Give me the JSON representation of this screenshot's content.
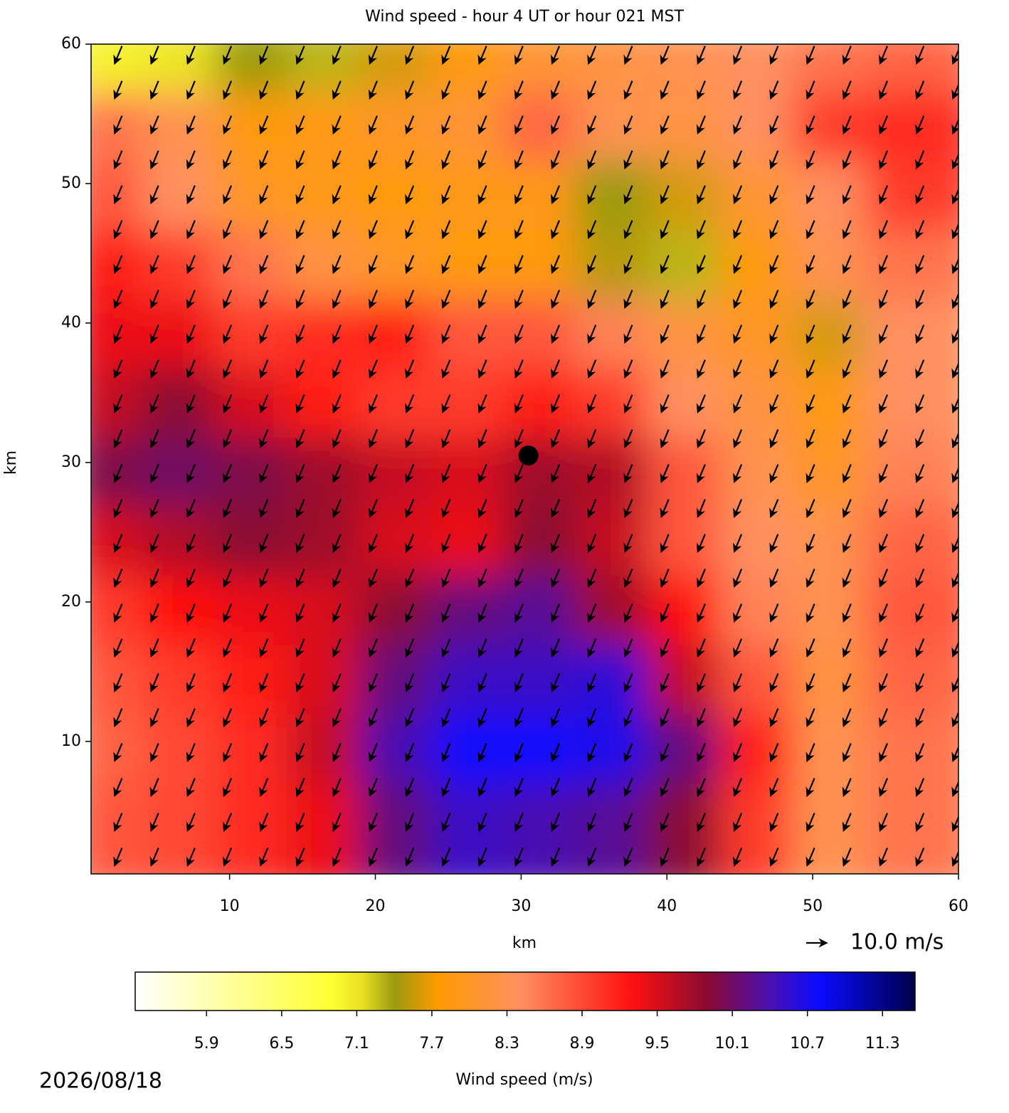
{
  "chart_data": {
    "type": "heatmap",
    "title": "Wind speed - hour 4 UT or hour 021 MST",
    "x_label": "km",
    "y_label": "km",
    "xlim": [
      0.5,
      60
    ],
    "ylim": [
      0.5,
      60
    ],
    "xticks": [
      10,
      20,
      30,
      40,
      50,
      60
    ],
    "yticks": [
      10,
      20,
      30,
      40,
      50,
      60
    ],
    "speed": [
      [
        7.0,
        7.1,
        7.4,
        7.3,
        7.6,
        7.8,
        8.1,
        8.2,
        8.3,
        8.4,
        8.6,
        8.7
      ],
      [
        8.6,
        8.3,
        7.8,
        7.9,
        8.0,
        8.1,
        8.7,
        8.3,
        8.2,
        8.4,
        9.0,
        9.1
      ],
      [
        8.8,
        8.4,
        8.0,
        7.9,
        7.8,
        7.9,
        7.9,
        7.4,
        7.6,
        8.1,
        8.4,
        9.0
      ],
      [
        9.2,
        9.0,
        8.6,
        8.2,
        8.0,
        7.8,
        7.8,
        7.5,
        7.3,
        7.8,
        8.3,
        8.6
      ],
      [
        9.4,
        9.4,
        9.0,
        9.1,
        9.2,
        8.8,
        8.8,
        8.5,
        8.2,
        8.0,
        7.6,
        8.4
      ],
      [
        9.6,
        9.9,
        9.5,
        9.2,
        9.0,
        9.0,
        9.2,
        9.0,
        8.4,
        8.2,
        7.8,
        8.4
      ],
      [
        10.0,
        10.1,
        10.0,
        9.8,
        9.6,
        9.5,
        9.8,
        9.7,
        8.8,
        8.3,
        8.0,
        8.5
      ],
      [
        9.5,
        9.7,
        9.9,
        9.8,
        9.5,
        9.4,
        9.9,
        9.6,
        8.8,
        8.4,
        8.3,
        8.7
      ],
      [
        9.0,
        9.3,
        9.4,
        9.5,
        9.9,
        10.2,
        10.3,
        9.8,
        9.3,
        8.5,
        8.3,
        8.8
      ],
      [
        8.8,
        9.0,
        9.2,
        9.5,
        10.2,
        10.5,
        10.5,
        10.6,
        9.6,
        8.8,
        8.2,
        8.7
      ],
      [
        8.7,
        8.9,
        9.1,
        9.6,
        10.4,
        10.8,
        10.8,
        10.7,
        10.2,
        9.2,
        8.3,
        8.6
      ],
      [
        8.8,
        8.9,
        9.1,
        9.4,
        10.2,
        10.5,
        10.4,
        10.3,
        9.9,
        9.0,
        8.3,
        8.6
      ]
    ],
    "quiver": {
      "u": -2.5,
      "v": -6,
      "spacing": 2.5,
      "key_value": 10,
      "key_label": "10.0 m/s"
    },
    "marker": {
      "x": 30.5,
      "y": 30.5,
      "color": "#000000"
    },
    "colorbar": {
      "label": "Wind speed (m/s)",
      "clim": [
        5.33,
        11.56
      ],
      "ticks": [
        5.9,
        6.5,
        7.1,
        7.7,
        8.3,
        8.9,
        9.5,
        10.1,
        10.7,
        11.3
      ],
      "colormap": [
        {
          "value": 5.33,
          "color": "#ffffff"
        },
        {
          "value": 6.9,
          "color": "#ffff33"
        },
        {
          "value": 7.15,
          "color": "#e8e020"
        },
        {
          "value": 7.4,
          "color": "#9a9a10"
        },
        {
          "value": 7.75,
          "color": "#ff9a00"
        },
        {
          "value": 8.4,
          "color": "#ff9060"
        },
        {
          "value": 9.3,
          "color": "#ff1010"
        },
        {
          "value": 9.9,
          "color": "#8a0a30"
        },
        {
          "value": 10.4,
          "color": "#4a10b0"
        },
        {
          "value": 10.8,
          "color": "#0a0aff"
        },
        {
          "value": 11.56,
          "color": "#00004a"
        }
      ]
    },
    "date": "2026/08/18"
  }
}
